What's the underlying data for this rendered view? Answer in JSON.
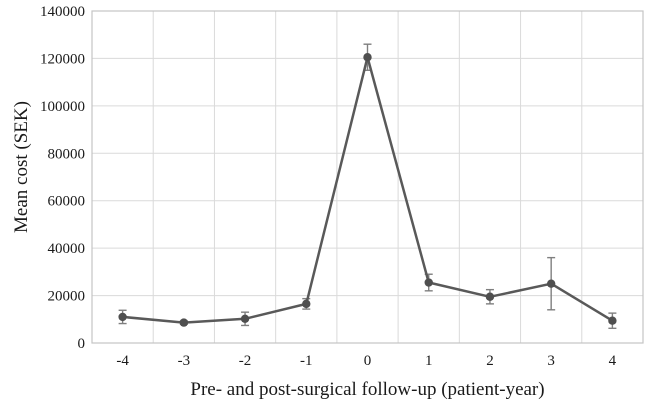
{
  "chart_data": {
    "type": "line",
    "title": "",
    "xlabel": "Pre- and post-surgical follow-up (patient-year)",
    "ylabel": "Mean cost (SEK)",
    "categories": [
      "-4",
      "-3",
      "-2",
      "-1",
      "0",
      "1",
      "2",
      "3",
      "4"
    ],
    "series": [
      {
        "name": "Mean cost",
        "values": [
          11000,
          8600,
          10200,
          16500,
          120500,
          25500,
          19500,
          25000,
          9400
        ],
        "errors": [
          2800,
          700,
          2800,
          2200,
          5500,
          3500,
          3000,
          11000,
          3200
        ]
      }
    ],
    "ylim": [
      0,
      140000
    ],
    "ytick_values": [
      0,
      20000,
      40000,
      60000,
      80000,
      100000,
      120000,
      140000
    ],
    "ytick_labels": [
      "0",
      "20000",
      "40000",
      "60000",
      "80000",
      "100000",
      "120000",
      "140000"
    ],
    "grid": "both",
    "legend": "none",
    "colors": {
      "line": "#595959",
      "marker": "#4f4f4f",
      "errorbar": "#7f7f7f",
      "grid": "#dadada",
      "border": "#c4c4c4",
      "text": "#1a1a1a"
    }
  }
}
